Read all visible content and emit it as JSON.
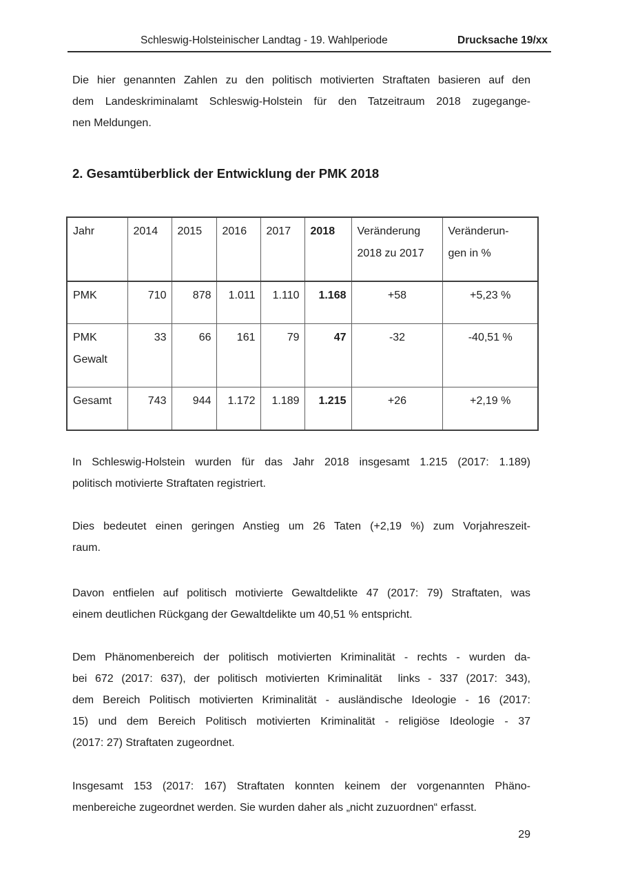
{
  "header": {
    "left": "Schleswig-Holsteinischer Landtag - 19. Wahlperiode",
    "right": "Drucksache 19/xx"
  },
  "section": {
    "heading": "2. Gesamtüberblick der Entwicklung der PMK 2018"
  },
  "paragraphs": {
    "intro": [
      "Die hier genannten Zahlen zu den politisch motivierten Straftaten basieren auf den",
      "dem Landeskriminalamt Schleswig-Holstein für den Tatzeitraum 2018 zugegange-",
      "nen Meldungen."
    ],
    "registered": [
      "In Schleswig-Holstein wurden für das Jahr 2018 insgesamt 1.215 (2017: 1.189)",
      "politisch motivierte Straftaten registriert."
    ],
    "increase": [
      "Dies bedeutet einen geringen Anstieg um 26 Taten (+2,19 %) zum Vorjahreszeit-",
      "raum."
    ],
    "violence": [
      "Davon entfielen auf politisch motivierte Gewaltdelikte 47 (2017: 79) Straftaten, was",
      "einem deutlichen Rückgang der Gewaltdelikte um 40,51 % entspricht."
    ],
    "phenomena": [
      "Dem Phänomenbereich der politisch motivierten Kriminalität - rechts - wurden da-",
      "bei 672 (2017: 637), der politisch motivierten Kriminalität  links - 337 (2017: 343),",
      "dem Bereich Politisch motivierten Kriminalität - ausländische Ideologie - 16 (2017:",
      "15) und dem Bereich Politisch motivierten Kriminalität - religiöse Ideologie - 37",
      "(2017: 27) Straftaten zugeordnet."
    ],
    "unassigned": [
      "Insgesamt 153 (2017: 167) Straftaten konnten keinem der vorgenannten Phäno-",
      "menbereiche zugeordnet werden. Sie wurden daher als „nicht zuzuordnen“ erfasst."
    ]
  },
  "table": {
    "columns": [
      "Jahr",
      "2014",
      "2015",
      "2016",
      "2017",
      "2018",
      "Veränderung\n2018 zu 2017",
      "Veränderun-\ngen in %"
    ],
    "rows": [
      {
        "label": "PMK",
        "values": [
          "710",
          "878",
          "1.011",
          "1.110",
          "1.168",
          "+58",
          "+5,23 %"
        ]
      },
      {
        "label": "PMK\nGewalt",
        "values": [
          "33",
          "66",
          "161",
          "79",
          "47",
          "-32",
          "-40,51 %"
        ]
      },
      {
        "label": "Gesamt",
        "values": [
          "743",
          "944",
          "1.172",
          "1.189",
          "1.215",
          "+26",
          "+2,19 %"
        ]
      }
    ]
  },
  "page_number": "29"
}
